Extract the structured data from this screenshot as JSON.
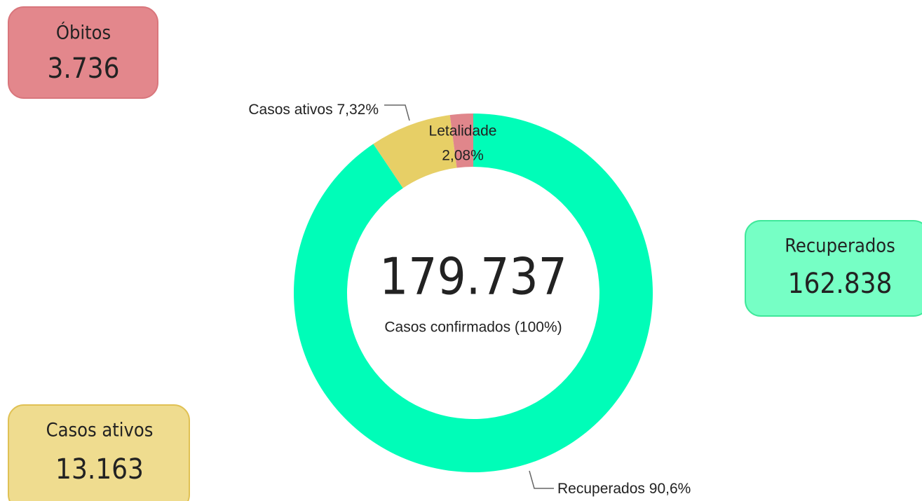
{
  "chart_data": {
    "type": "donut",
    "categories": [
      "Recuperados",
      "Casos ativos",
      "Letalidade"
    ],
    "values": [
      90.6,
      7.32,
      2.08
    ],
    "value_labels": [
      "90,6%",
      "7,32%",
      "2,08%"
    ],
    "colors": [
      "#00fdb8",
      "#e7cf66",
      "#e0868b"
    ],
    "center_value": "179.737",
    "center_label": "Casos confirmados (100%)"
  },
  "cards": [
    {
      "label": "Óbitos",
      "value": "3.736"
    },
    {
      "label": "Recuperados",
      "value": "162.838"
    },
    {
      "label": "Casos ativos",
      "value": "13.163"
    }
  ]
}
